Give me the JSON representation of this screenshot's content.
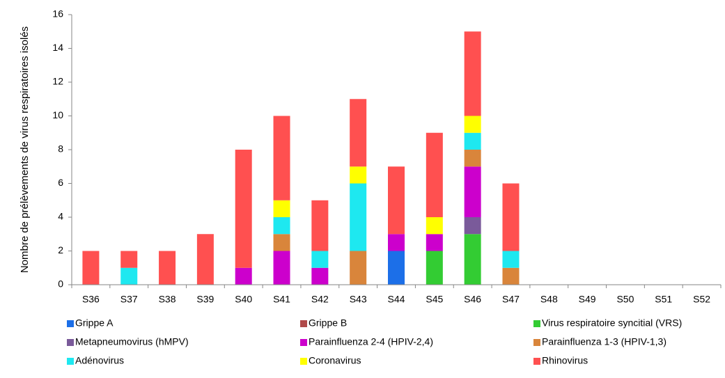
{
  "chart_data": {
    "type": "stacked_bar",
    "y_label": "Nombre de prélèvements de virus respiratoires isolés",
    "categories": [
      "S36",
      "S37",
      "S38",
      "S39",
      "S40",
      "S41",
      "S42",
      "S43",
      "S44",
      "S45",
      "S46",
      "S47",
      "S48",
      "S49",
      "S50",
      "S51",
      "S52"
    ],
    "series": [
      {
        "name": "Grippe A",
        "color": "#1c6fe8",
        "values": [
          0,
          0,
          0,
          0,
          0,
          0,
          0,
          0,
          2,
          0,
          0,
          0,
          0,
          0,
          0,
          0,
          0
        ]
      },
      {
        "name": "Grippe B",
        "color": "#b04a4a",
        "values": [
          0,
          0,
          0,
          0,
          0,
          0,
          0,
          0,
          0,
          0,
          0,
          0,
          0,
          0,
          0,
          0,
          0
        ]
      },
      {
        "name": "Virus respiratoire syncitial (VRS)",
        "color": "#33cc33",
        "values": [
          0,
          0,
          0,
          0,
          0,
          0,
          0,
          0,
          0,
          2,
          3,
          0,
          0,
          0,
          0,
          0,
          0
        ]
      },
      {
        "name": "Metapneumovirus (hMPV)",
        "color": "#7a5a9a",
        "values": [
          0,
          0,
          0,
          0,
          0,
          0,
          0,
          0,
          0,
          0,
          1,
          0,
          0,
          0,
          0,
          0,
          0
        ]
      },
      {
        "name": "Parainfluenza 2-4 (HPIV-2,4)",
        "color": "#cc00cc",
        "values": [
          0,
          0,
          0,
          0,
          1,
          2,
          1,
          0,
          1,
          1,
          3,
          0,
          0,
          0,
          0,
          0,
          0
        ]
      },
      {
        "name": "Parainfluenza 1-3 (HPIV-1,3)",
        "color": "#d9853b",
        "values": [
          0,
          0,
          0,
          0,
          0,
          1,
          0,
          2,
          0,
          0,
          1,
          1,
          0,
          0,
          0,
          0,
          0
        ]
      },
      {
        "name": "Adénovirus",
        "color": "#1ee8f0",
        "values": [
          0,
          1,
          0,
          0,
          0,
          1,
          1,
          4,
          0,
          0,
          1,
          1,
          0,
          0,
          0,
          0,
          0
        ]
      },
      {
        "name": "Coronavirus",
        "color": "#ffff00",
        "values": [
          0,
          0,
          0,
          0,
          0,
          1,
          0,
          1,
          0,
          1,
          1,
          0,
          0,
          0,
          0,
          0,
          0
        ]
      },
      {
        "name": "Rhinovirus",
        "color": "#ff5050",
        "values": [
          2,
          1,
          2,
          3,
          7,
          5,
          3,
          4,
          4,
          5,
          5,
          4,
          0,
          0,
          0,
          0,
          0
        ]
      }
    ],
    "ylim": [
      0,
      16
    ],
    "yticks": [
      0,
      2,
      4,
      6,
      8,
      10,
      12,
      14,
      16
    ],
    "grid": false
  }
}
